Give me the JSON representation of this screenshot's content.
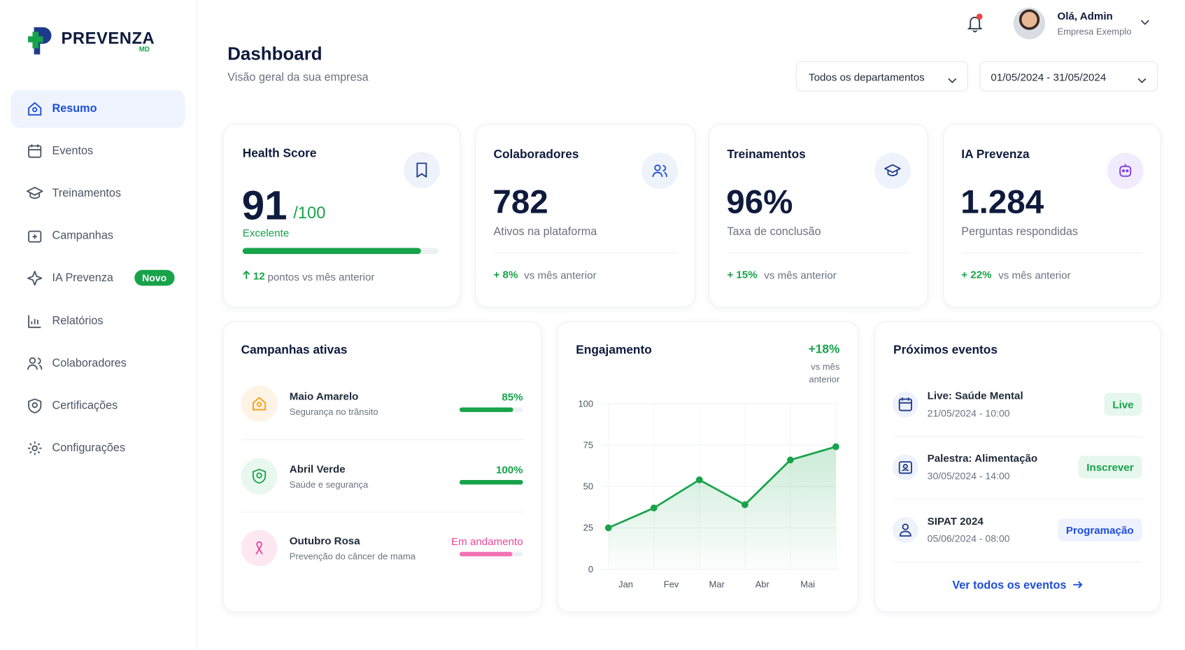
{
  "brand": {
    "name": "PREVENZA",
    "sub": "MD"
  },
  "nav": [
    {
      "label": "Resumo"
    },
    {
      "label": "Eventos"
    },
    {
      "label": "Treinamentos"
    },
    {
      "label": "Campanhas"
    },
    {
      "label": "IA Prevenza",
      "badge": "Novo"
    },
    {
      "label": "Relatórios"
    },
    {
      "label": "Colaboradores"
    },
    {
      "label": "Certificações"
    },
    {
      "label": "Configurações"
    }
  ],
  "active_nav": 0,
  "header": {
    "title": "Dashboard",
    "subtitle": "Visão geral da sua empresa"
  },
  "user": {
    "greeting": "Olá, Admin",
    "company": "Empresa Exemplo"
  },
  "filters": [
    "Todos os departamentos",
    "01/05/2024 - 31/05/2024"
  ],
  "health": {
    "title": "Health Score",
    "score": 91,
    "max": {
      "value": 100,
      "label": "/100"
    },
    "status": "Excelente",
    "change": "12",
    "change_text": "pontos vs mês anterior"
  },
  "kpis": [
    {
      "title": "Colaboradores",
      "value": "782",
      "caption": "Ativos na plataforma",
      "change": "+ 8%",
      "change_text": "vs mês anterior"
    },
    {
      "title": "Treinamentos",
      "value": "96%",
      "caption": "Taxa de conclusão",
      "change": "+ 15%",
      "change_text": "vs mês anterior"
    },
    {
      "title": "IA Prevenza",
      "value": "1.284",
      "caption": "Perguntas respondidas",
      "change": "+ 22%",
      "change_text": "vs mês anterior"
    }
  ],
  "campaigns": {
    "title": "Campanhas ativas",
    "items": [
      {
        "name": "Maio Amarelo",
        "desc": "Segurança no trânsito",
        "progress": 85,
        "progress_label": "85%"
      },
      {
        "name": "Abril Verde",
        "desc": "Saúde e segurança",
        "progress": 100,
        "progress_label": "100%"
      },
      {
        "name": "Outubro Rosa",
        "desc": "Prevenção do câncer de mama",
        "progress": 83,
        "status": "Em andamento"
      }
    ]
  },
  "chart_data": {
    "type": "line",
    "title": "Engajamento",
    "change": "+18%",
    "change_text": "vs mês anterior",
    "categories": [
      "Jan",
      "Fev",
      "Mar",
      "Abr",
      "Mai",
      null
    ],
    "values": [
      25,
      37,
      54,
      39,
      66,
      74
    ],
    "color": "#16a34a",
    "ylim": [
      0,
      100
    ],
    "yticks": [
      0,
      25,
      50,
      75,
      100
    ],
    "grid": true
  },
  "events": {
    "title": "Próximos eventos",
    "items": [
      {
        "title": "Live: Saúde Mental",
        "datetime": "21/05/2024 - 10:00",
        "action": "Live"
      },
      {
        "title": "Palestra: Alimentação",
        "datetime": "30/05/2024 - 14:00",
        "action": "Inscrever"
      },
      {
        "title": "SIPAT 2024",
        "datetime": "05/06/2024 - 08:00",
        "action": "Programação"
      }
    ],
    "link": "Ver todos os eventos"
  }
}
